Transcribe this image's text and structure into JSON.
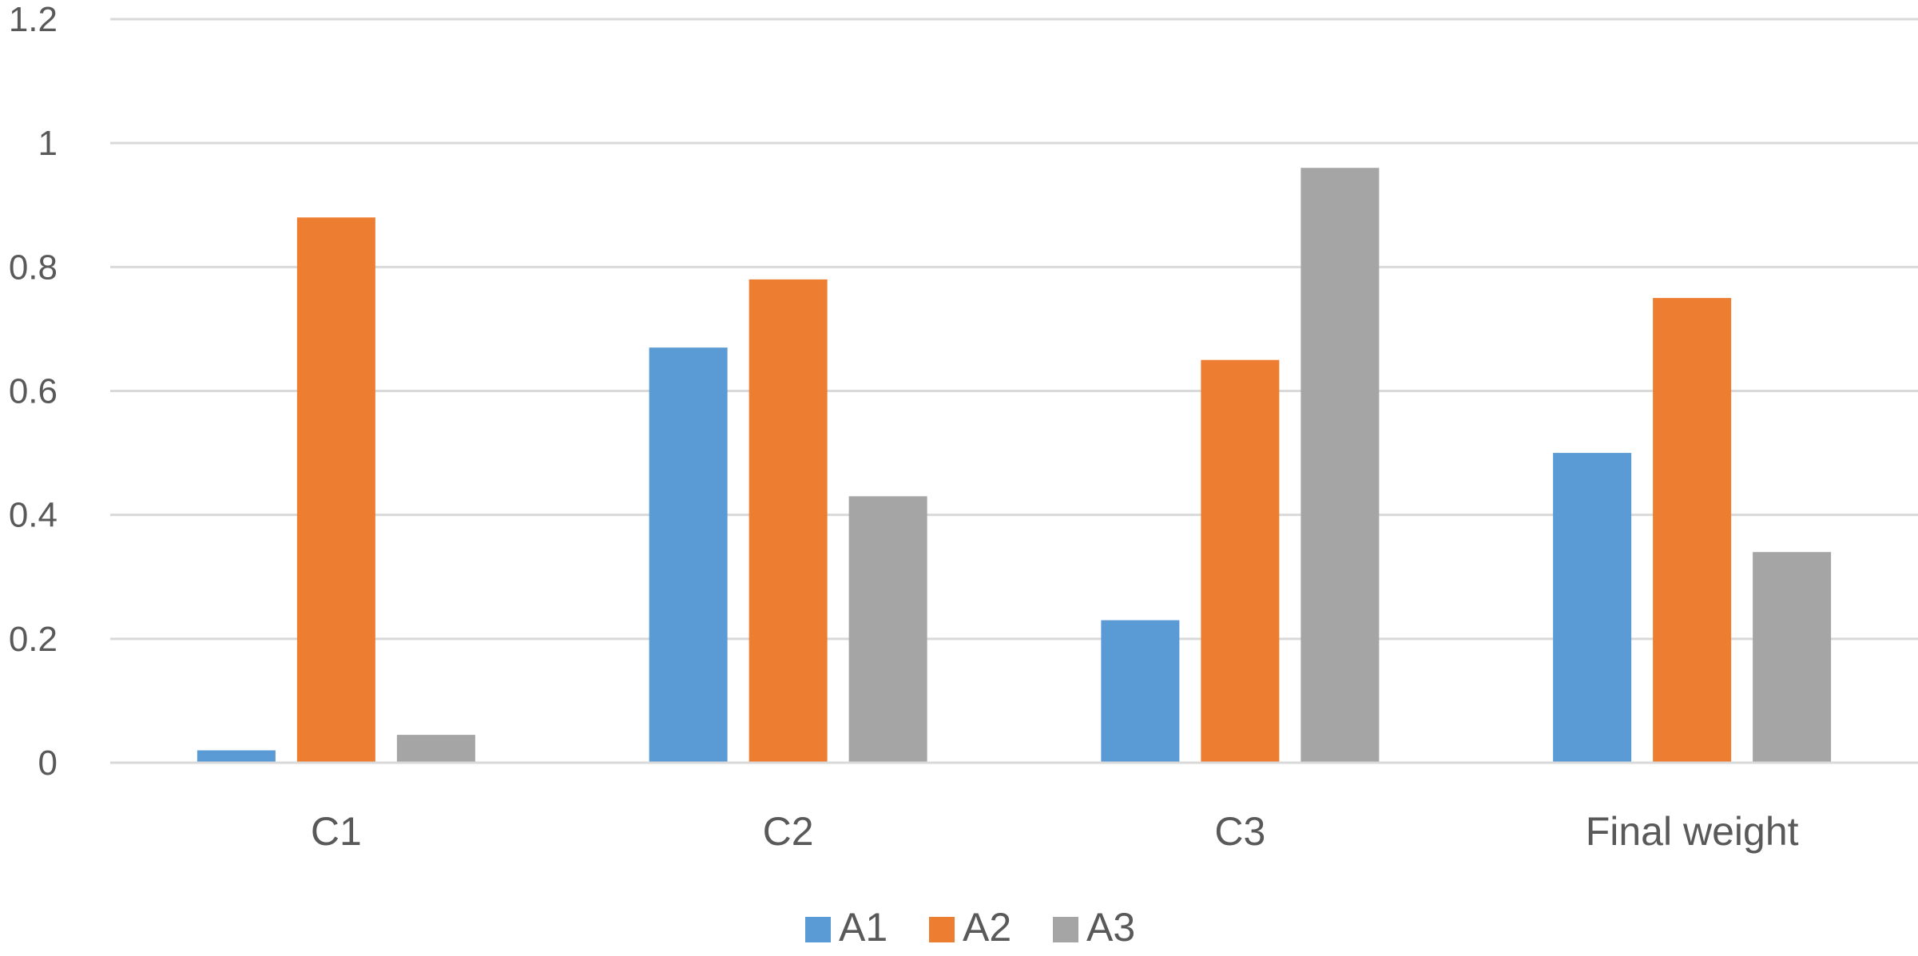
{
  "chart_data": {
    "type": "bar",
    "title": "",
    "xlabel": "",
    "ylabel": "",
    "categories": [
      "C1",
      "C2",
      "C3",
      "Final weight"
    ],
    "series": [
      {
        "name": "A1",
        "color": "#5B9BD5",
        "values": [
          0.02,
          0.67,
          0.23,
          0.5
        ]
      },
      {
        "name": "A2",
        "color": "#ED7D31",
        "values": [
          0.88,
          0.78,
          0.65,
          0.75
        ]
      },
      {
        "name": "A3",
        "color": "#A5A5A5",
        "values": [
          0.045,
          0.43,
          0.96,
          0.34
        ]
      }
    ],
    "ylim": [
      0,
      1.2
    ],
    "yticks": [
      0,
      0.2,
      0.4,
      0.6,
      0.8,
      1,
      1.2
    ],
    "ytick_labels": [
      "0",
      "0.2",
      "0.4",
      "0.6",
      "0.8",
      "1",
      "1.2"
    ],
    "grid": true,
    "grid_color": "#D9D9D9",
    "legend_position": "bottom"
  }
}
